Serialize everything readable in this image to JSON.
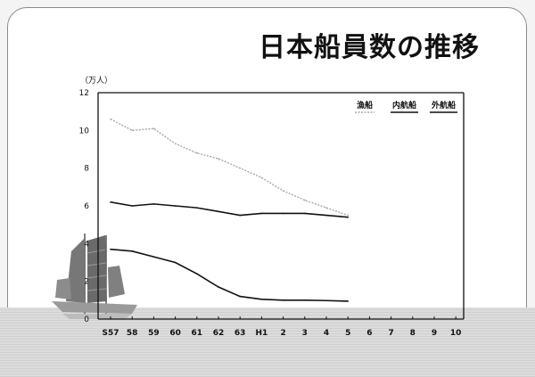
{
  "title": "日本船員数の推移",
  "chart_data": {
    "type": "line",
    "ylabel": "（万人）",
    "ylim": [
      0,
      12
    ],
    "yticks": [
      0,
      2,
      4,
      6,
      8,
      10,
      12
    ],
    "categories": [
      "S57",
      "58",
      "59",
      "60",
      "61",
      "62",
      "63",
      "H1",
      "2",
      "3",
      "4",
      "5",
      "6",
      "7",
      "8",
      "9",
      "10"
    ],
    "grid": false,
    "legend_position": "top-right",
    "series": [
      {
        "name": "漁船",
        "color": "#a8a8a8",
        "dashed": true,
        "values": [
          10.6,
          10.0,
          10.1,
          9.3,
          8.8,
          8.5,
          8.0,
          7.5,
          6.8,
          6.3,
          5.9,
          5.5,
          null,
          null,
          null,
          null,
          null
        ]
      },
      {
        "name": "内航船",
        "color": "#111111",
        "dashed": false,
        "values": [
          6.2,
          6.0,
          6.1,
          6.0,
          5.9,
          5.7,
          5.5,
          5.6,
          5.6,
          5.6,
          5.5,
          5.4,
          null,
          null,
          null,
          null,
          null
        ]
      },
      {
        "name": "外航船",
        "color": "#111111",
        "dashed": false,
        "values": [
          3.7,
          3.6,
          3.3,
          3.0,
          2.4,
          1.7,
          1.2,
          1.05,
          1.0,
          1.0,
          0.98,
          0.95,
          null,
          null,
          null,
          null,
          null
        ]
      }
    ]
  }
}
